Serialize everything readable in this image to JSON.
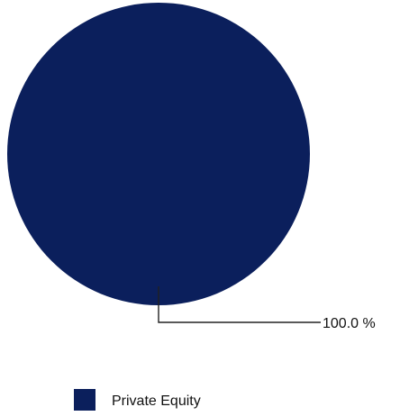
{
  "chart_data": {
    "type": "pie",
    "series": [
      {
        "name": "Private Equity",
        "value": 100.0,
        "label": "100.0 %",
        "color": "#0b1f5c"
      }
    ],
    "legend": "bottom",
    "title": "",
    "subtitle": ""
  }
}
